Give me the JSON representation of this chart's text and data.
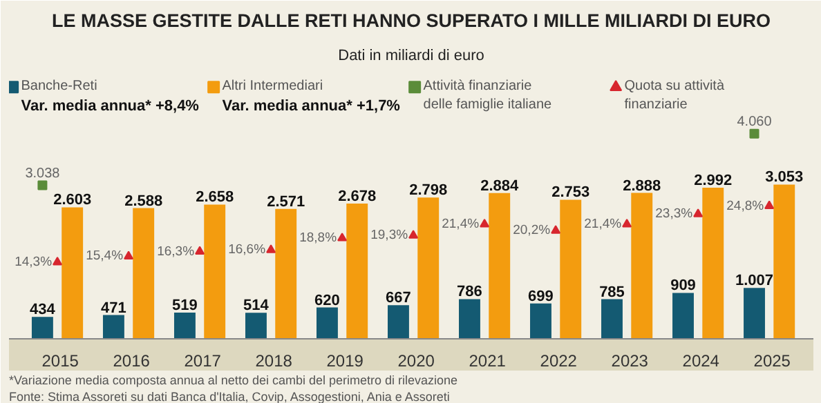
{
  "chart_data": {
    "type": "bar",
    "title": "LE MASSE GESTITE DALLE RETI HANNO SUPERATO I MILLE MILIARDI DI EURO",
    "subtitle": "Dati in miliardi di euro",
    "categories": [
      "2015",
      "2016",
      "2017",
      "2018",
      "2019",
      "2020",
      "2021",
      "2022",
      "2023",
      "2024",
      "2025"
    ],
    "series": [
      {
        "name": "Banche-Reti",
        "color": "#145a72",
        "values": [
          434,
          471,
          519,
          514,
          620,
          667,
          786,
          699,
          785,
          909,
          1007
        ],
        "value_labels": [
          "434",
          "471",
          "519",
          "514",
          "620",
          "667",
          "786",
          "699",
          "785",
          "909",
          "1.007"
        ]
      },
      {
        "name": "Altri Intermediari",
        "color": "#f39c0f",
        "values": [
          2603,
          2588,
          2658,
          2571,
          2678,
          2798,
          2884,
          2753,
          2888,
          2992,
          3053
        ],
        "value_labels": [
          "2.603",
          "2.588",
          "2.658",
          "2.571",
          "2.678",
          "2.798",
          "2.884",
          "2.753",
          "2.888",
          "2.992",
          "3.053"
        ]
      },
      {
        "name": "Attività finanziarie delle famiglie italiane",
        "type": "scatter",
        "marker": "square",
        "color": "#5b8c3a",
        "values": [
          3038,
          null,
          null,
          null,
          null,
          null,
          null,
          null,
          null,
          null,
          4060
        ],
        "value_labels": [
          "3.038",
          null,
          null,
          null,
          null,
          null,
          null,
          null,
          null,
          null,
          "4.060"
        ]
      },
      {
        "name": "Quota su attività finanziarie",
        "type": "scatter",
        "marker": "triangle",
        "axis": "y2",
        "color": "#d7262e",
        "values": [
          14.3,
          15.4,
          16.3,
          16.6,
          18.8,
          19.3,
          21.4,
          20.2,
          21.4,
          23.3,
          24.8
        ],
        "value_labels": [
          "14,3%",
          "15,4%",
          "16,3%",
          "16,6%",
          "18,8%",
          "19,3%",
          "21,4%",
          "20,2%",
          "21,4%",
          "23,3%",
          "24,8%"
        ]
      }
    ],
    "annotations": [
      "Var. media annua* +8,4%",
      "Var. media annua* +1,7%",
      "*Variazione media composta annua al netto dei cambi del perimetro di rilevazione",
      "Fonte: Stima Assoreti su dati Banca d'Italia, Covip, Assogestioni, Ania e Assoreti"
    ],
    "ylim": [
      0,
      5300
    ],
    "y2lim": [
      0,
      50
    ],
    "tick_labels": "x",
    "legend": "top",
    "grid": false
  }
}
